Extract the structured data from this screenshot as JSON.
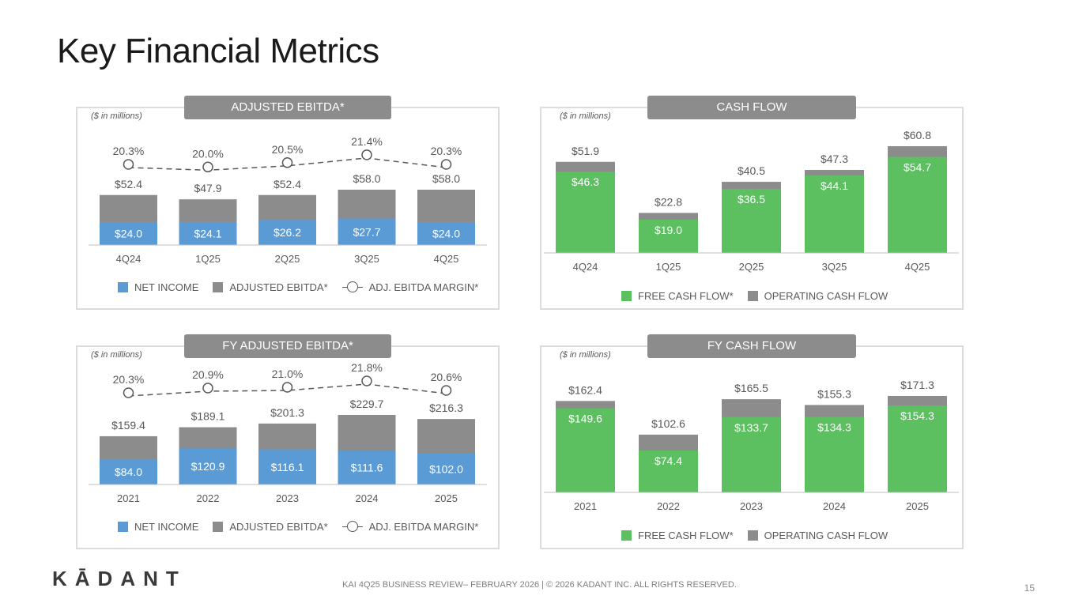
{
  "page": {
    "title": "Key Financial Metrics",
    "logo": "KĀDANT",
    "footer": "KAI 4Q25 BUSINESS REVIEW– FEBRUARY 2026 | © 2026 KADANT INC. ALL RIGHTS RESERVED.",
    "page_number": "15"
  },
  "legends": {
    "net_income": "NET INCOME",
    "adjusted_ebitda": "ADJUSTED EBITDA*",
    "adj_ebitda_margin": "ADJ. EBITDA MARGIN*",
    "free_cash_flow": "FREE CASH FLOW*",
    "operating_cash_flow": "OPERATING CASH FLOW"
  },
  "colors": {
    "net_income": "#5b9bd5",
    "ebitda": "#8c8c8c",
    "free_cash_flow": "#5cbf60",
    "operating_cash_flow": "#8c8c8c",
    "margin_line": "#595959"
  },
  "chart_data": [
    {
      "id": "adj_ebitda",
      "type": "bar",
      "title": "ADJUSTED EBITDA*",
      "units": "($ in millions)",
      "categories": [
        "4Q24",
        "1Q25",
        "2Q25",
        "3Q25",
        "4Q25"
      ],
      "series": [
        {
          "name": "NET INCOME",
          "values": [
            24.0,
            24.1,
            26.2,
            27.7,
            24.0
          ],
          "labels": [
            "$24.0",
            "$24.1",
            "$26.2",
            "$27.7",
            "$24.0"
          ]
        },
        {
          "name": "ADJUSTED EBITDA*",
          "values": [
            52.4,
            47.9,
            52.4,
            58.0,
            58.0
          ],
          "labels": [
            "$52.4",
            "$47.9",
            "$52.4",
            "$58.0",
            "$58.0"
          ]
        }
      ],
      "line": {
        "name": "ADJ. EBITDA MARGIN*",
        "values": [
          20.3,
          20.0,
          20.5,
          21.4,
          20.3
        ],
        "labels": [
          "20.3%",
          "20.0%",
          "20.5%",
          "21.4%",
          "20.3%"
        ]
      },
      "ylim": [
        0,
        58
      ]
    },
    {
      "id": "cash_flow",
      "type": "bar",
      "title": "CASH FLOW",
      "units": "($ in millions)",
      "categories": [
        "4Q24",
        "1Q25",
        "2Q25",
        "3Q25",
        "4Q25"
      ],
      "series": [
        {
          "name": "FREE CASH FLOW*",
          "values": [
            46.3,
            19.0,
            36.5,
            44.1,
            54.7
          ],
          "labels": [
            "$46.3",
            "$19.0",
            "$36.5",
            "$44.1",
            "$54.7"
          ]
        },
        {
          "name": "OPERATING CASH FLOW",
          "values": [
            51.9,
            22.8,
            40.5,
            47.3,
            60.8
          ],
          "labels": [
            "$51.9",
            "$22.8",
            "$40.5",
            "$47.3",
            "$60.8"
          ]
        }
      ],
      "ylim": [
        0,
        60.8
      ]
    },
    {
      "id": "fy_adj_ebitda",
      "type": "bar",
      "title": "FY ADJUSTED EBITDA*",
      "units": "($ in millions)",
      "categories": [
        "2021",
        "2022",
        "2023",
        "2024",
        "2025"
      ],
      "series": [
        {
          "name": "NET INCOME",
          "values": [
            84.0,
            120.9,
            116.1,
            111.6,
            102.0
          ],
          "labels": [
            "$84.0",
            "$120.9",
            "$116.1",
            "$111.6",
            "$102.0"
          ]
        },
        {
          "name": "ADJUSTED EBITDA*",
          "values": [
            159.4,
            189.1,
            201.3,
            229.7,
            216.3
          ],
          "labels": [
            "$159.4",
            "$189.1",
            "$201.3",
            "$229.7",
            "$216.3"
          ]
        }
      ],
      "line": {
        "name": "ADJ. EBITDA MARGIN*",
        "values": [
          20.3,
          20.9,
          21.0,
          21.8,
          20.6
        ],
        "labels": [
          "20.3%",
          "20.9%",
          "21.0%",
          "21.8%",
          "20.6%"
        ]
      },
      "ylim": [
        0,
        229.7
      ]
    },
    {
      "id": "fy_cash_flow",
      "type": "bar",
      "title": "FY CASH FLOW",
      "units": "($ in millions)",
      "categories": [
        "2021",
        "2022",
        "2023",
        "2024",
        "2025"
      ],
      "series": [
        {
          "name": "FREE CASH FLOW*",
          "values": [
            149.6,
            74.4,
            133.7,
            134.3,
            154.3
          ],
          "labels": [
            "$149.6",
            "$74.4",
            "$133.7",
            "$134.3",
            "$154.3"
          ]
        },
        {
          "name": "OPERATING CASH FLOW",
          "values": [
            162.4,
            102.6,
            165.5,
            155.3,
            171.3
          ],
          "labels": [
            "$162.4",
            "$102.6",
            "$165.5",
            "$155.3",
            "$171.3"
          ]
        }
      ],
      "ylim": [
        0,
        171.3
      ]
    }
  ]
}
